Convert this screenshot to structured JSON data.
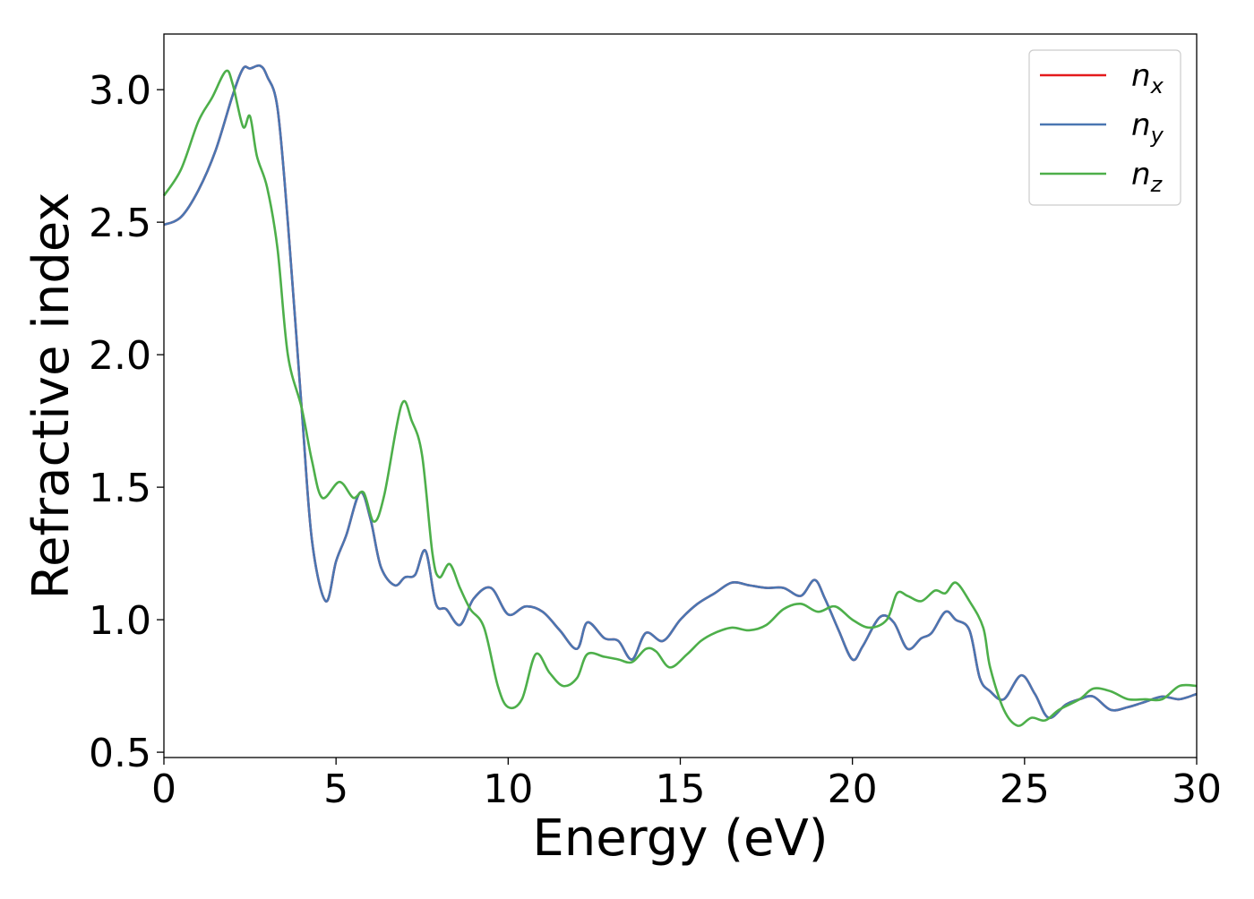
{
  "chart_data": {
    "type": "line",
    "xlabel": "Energy (eV)",
    "ylabel": "Refractive index",
    "xlim": [
      0,
      30
    ],
    "ylim": [
      0.48,
      3.21
    ],
    "xticks": [
      0,
      5,
      10,
      15,
      20,
      25,
      30
    ],
    "xtick_labels": [
      "0",
      "5",
      "10",
      "15",
      "20",
      "25",
      "30"
    ],
    "yticks": [
      0.5,
      1.0,
      1.5,
      2.0,
      2.5,
      3.0
    ],
    "ytick_labels": [
      "0.5",
      "1.0",
      "1.5",
      "2.0",
      "2.5",
      "3.0"
    ],
    "grid": false,
    "legend_position": "top-right",
    "series": [
      {
        "name": "n",
        "subscript": "x",
        "color": "#e41a1c",
        "x": [
          0,
          0.5,
          1.0,
          1.5,
          2.0,
          2.3,
          2.5,
          2.8,
          3.0,
          3.3,
          3.6,
          4.0,
          4.3,
          4.7,
          5.0,
          5.3,
          5.7,
          6.0,
          6.3,
          6.7,
          7.0,
          7.3,
          7.6,
          7.9,
          8.2,
          8.6,
          9.0,
          9.5,
          10.0,
          10.5,
          11.0,
          11.5,
          12.0,
          12.3,
          12.8,
          13.2,
          13.6,
          14.0,
          14.5,
          15.0,
          15.5,
          16.0,
          16.5,
          17.0,
          17.5,
          18.0,
          18.5,
          18.9,
          19.2,
          19.6,
          20.0,
          20.3,
          20.8,
          21.2,
          21.6,
          22.0,
          22.3,
          22.7,
          23.0,
          23.4,
          23.7,
          24.0,
          24.4,
          24.9,
          25.3,
          25.7,
          26.2,
          26.6,
          27.0,
          27.5,
          28.0,
          28.5,
          29.0,
          29.5,
          30.0
        ],
        "y": [
          2.49,
          2.52,
          2.62,
          2.77,
          2.98,
          3.08,
          3.08,
          3.09,
          3.05,
          2.93,
          2.5,
          1.8,
          1.3,
          1.07,
          1.22,
          1.32,
          1.48,
          1.38,
          1.2,
          1.13,
          1.16,
          1.17,
          1.26,
          1.06,
          1.04,
          0.98,
          1.08,
          1.12,
          1.02,
          1.05,
          1.03,
          0.96,
          0.89,
          0.99,
          0.93,
          0.92,
          0.85,
          0.95,
          0.92,
          1.0,
          1.06,
          1.1,
          1.14,
          1.13,
          1.12,
          1.12,
          1.09,
          1.15,
          1.08,
          0.96,
          0.85,
          0.9,
          1.01,
          0.99,
          0.89,
          0.93,
          0.95,
          1.03,
          1.0,
          0.96,
          0.78,
          0.73,
          0.7,
          0.79,
          0.72,
          0.63,
          0.68,
          0.7,
          0.71,
          0.66,
          0.67,
          0.69,
          0.71,
          0.7,
          0.72
        ]
      },
      {
        "name": "n",
        "subscript": "y",
        "color": "#4a76b2",
        "x": [
          0,
          0.5,
          1.0,
          1.5,
          2.0,
          2.3,
          2.5,
          2.8,
          3.0,
          3.3,
          3.6,
          4.0,
          4.3,
          4.7,
          5.0,
          5.3,
          5.7,
          6.0,
          6.3,
          6.7,
          7.0,
          7.3,
          7.6,
          7.9,
          8.2,
          8.6,
          9.0,
          9.5,
          10.0,
          10.5,
          11.0,
          11.5,
          12.0,
          12.3,
          12.8,
          13.2,
          13.6,
          14.0,
          14.5,
          15.0,
          15.5,
          16.0,
          16.5,
          17.0,
          17.5,
          18.0,
          18.5,
          18.9,
          19.2,
          19.6,
          20.0,
          20.3,
          20.8,
          21.2,
          21.6,
          22.0,
          22.3,
          22.7,
          23.0,
          23.4,
          23.7,
          24.0,
          24.4,
          24.9,
          25.3,
          25.7,
          26.2,
          26.6,
          27.0,
          27.5,
          28.0,
          28.5,
          29.0,
          29.5,
          30.0
        ],
        "y": [
          2.49,
          2.52,
          2.62,
          2.77,
          2.98,
          3.08,
          3.08,
          3.09,
          3.05,
          2.93,
          2.5,
          1.8,
          1.3,
          1.07,
          1.22,
          1.32,
          1.48,
          1.38,
          1.2,
          1.13,
          1.16,
          1.17,
          1.26,
          1.06,
          1.04,
          0.98,
          1.08,
          1.12,
          1.02,
          1.05,
          1.03,
          0.96,
          0.89,
          0.99,
          0.93,
          0.92,
          0.85,
          0.95,
          0.92,
          1.0,
          1.06,
          1.1,
          1.14,
          1.13,
          1.12,
          1.12,
          1.09,
          1.15,
          1.08,
          0.96,
          0.85,
          0.9,
          1.01,
          0.99,
          0.89,
          0.93,
          0.95,
          1.03,
          1.0,
          0.96,
          0.78,
          0.73,
          0.7,
          0.79,
          0.72,
          0.63,
          0.68,
          0.7,
          0.71,
          0.66,
          0.67,
          0.69,
          0.71,
          0.7,
          0.72
        ]
      },
      {
        "name": "n",
        "subscript": "z",
        "color": "#4daf4a",
        "x": [
          0,
          0.5,
          1.0,
          1.4,
          1.8,
          2.0,
          2.3,
          2.5,
          2.7,
          3.0,
          3.3,
          3.6,
          4.0,
          4.3,
          4.6,
          5.1,
          5.5,
          5.8,
          6.1,
          6.4,
          6.9,
          7.2,
          7.5,
          7.8,
          8.0,
          8.3,
          8.6,
          8.9,
          9.3,
          9.7,
          10.0,
          10.4,
          10.8,
          11.2,
          11.6,
          12.0,
          12.3,
          12.8,
          13.2,
          13.6,
          14.0,
          14.3,
          14.7,
          15.2,
          15.6,
          16.0,
          16.5,
          17.0,
          17.5,
          18.0,
          18.5,
          19.0,
          19.5,
          20.0,
          20.5,
          21.0,
          21.3,
          21.6,
          22.0,
          22.4,
          22.7,
          23.0,
          23.4,
          23.8,
          24.0,
          24.4,
          24.8,
          25.2,
          25.6,
          26.0,
          26.6,
          27.0,
          27.5,
          28.0,
          28.5,
          29.0,
          29.5,
          30.0
        ],
        "y": [
          2.6,
          2.7,
          2.88,
          2.97,
          3.07,
          3.02,
          2.86,
          2.9,
          2.75,
          2.63,
          2.4,
          2.0,
          1.8,
          1.6,
          1.46,
          1.52,
          1.46,
          1.48,
          1.37,
          1.47,
          1.81,
          1.75,
          1.62,
          1.25,
          1.16,
          1.21,
          1.12,
          1.04,
          0.97,
          0.75,
          0.67,
          0.7,
          0.87,
          0.8,
          0.75,
          0.78,
          0.87,
          0.86,
          0.85,
          0.84,
          0.89,
          0.88,
          0.82,
          0.87,
          0.92,
          0.95,
          0.97,
          0.96,
          0.98,
          1.04,
          1.06,
          1.03,
          1.05,
          1.0,
          0.97,
          1.0,
          1.1,
          1.09,
          1.07,
          1.11,
          1.1,
          1.14,
          1.07,
          0.97,
          0.82,
          0.66,
          0.6,
          0.63,
          0.62,
          0.66,
          0.7,
          0.74,
          0.73,
          0.7,
          0.7,
          0.7,
          0.75,
          0.75
        ]
      }
    ]
  }
}
